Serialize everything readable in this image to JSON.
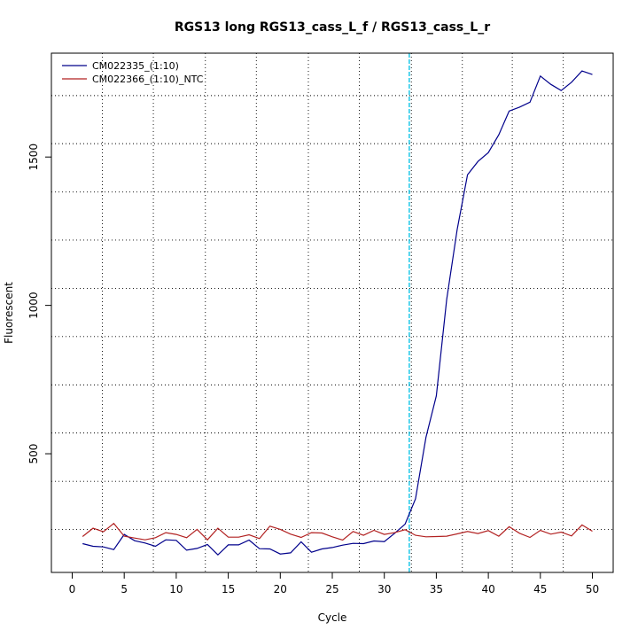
{
  "chart_data": {
    "type": "line",
    "title": "RGS13 long RGS13_cass_L_f / RGS13_cass_L_r",
    "xlabel": "Cycle",
    "ylabel": "Fluorescent",
    "xlim": [
      -2,
      52
    ],
    "ylim": [
      100,
      1850
    ],
    "x_ticks": [
      0,
      5,
      10,
      15,
      20,
      25,
      30,
      35,
      40,
      45,
      50
    ],
    "y_ticks": [
      500,
      1000,
      1500
    ],
    "grid": true,
    "grid_x": [
      2.9,
      7.8,
      12.8,
      17.7,
      22.7,
      27.6,
      32.6,
      37.5,
      42.3,
      47.2
    ],
    "grid_y": [
      245,
      407,
      570,
      732,
      895,
      1057,
      1220,
      1382,
      1545,
      1707
    ],
    "threshold_cycle": 32.4,
    "legend_position": "top-left",
    "x": [
      1,
      2,
      3,
      4,
      5,
      6,
      7,
      8,
      9,
      10,
      11,
      12,
      13,
      14,
      15,
      16,
      17,
      18,
      19,
      20,
      21,
      22,
      23,
      24,
      25,
      26,
      27,
      28,
      29,
      30,
      31,
      32,
      33,
      34,
      35,
      36,
      37,
      38,
      39,
      40,
      41,
      42,
      43,
      44,
      45,
      46,
      47,
      48,
      49,
      50
    ],
    "series": [
      {
        "name": "CM022335_(1:10)",
        "color": "#00008B",
        "values": [
          197,
          188,
          186,
          177,
          228,
          207,
          199,
          188,
          210,
          208,
          175,
          181,
          194,
          159,
          193,
          193,
          209,
          180,
          179,
          162,
          166,
          203,
          168,
          179,
          184,
          192,
          198,
          197,
          206,
          204,
          232,
          263,
          348,
          555,
          695,
          1020,
          1255,
          1440,
          1485,
          1515,
          1575,
          1655,
          1668,
          1685,
          1773,
          1745,
          1724,
          1752,
          1790,
          1778
        ]
      },
      {
        "name": "CM022366_(1:10)_NTC",
        "color": "#B22222",
        "values": [
          221,
          249,
          237,
          265,
          222,
          216,
          210,
          217,
          234,
          228,
          217,
          245,
          210,
          249,
          219,
          219,
          227,
          214,
          256,
          245,
          229,
          218,
          234,
          233,
          220,
          209,
          238,
          225,
          242,
          228,
          234,
          244,
          225,
          220,
          221,
          222,
          230,
          238,
          231,
          241,
          222,
          254,
          232,
          218,
          242,
          229,
          236,
          223,
          260,
          239
        ]
      }
    ]
  }
}
